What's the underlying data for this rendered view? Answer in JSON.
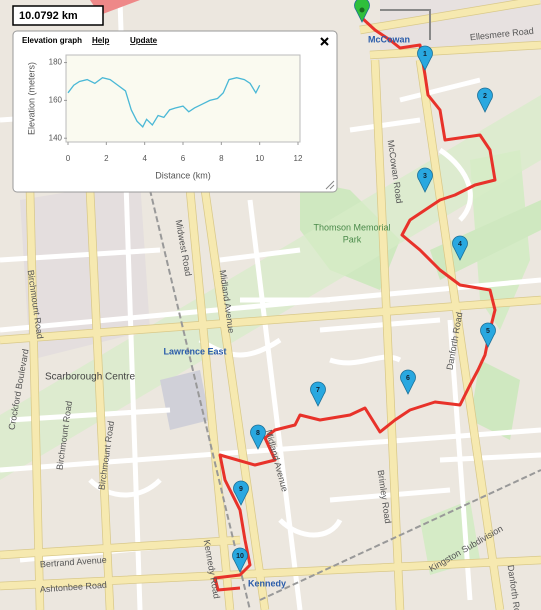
{
  "distance": "10.0792 km",
  "panel": {
    "title": "Elevation graph",
    "links": [
      "Help",
      "Update"
    ]
  },
  "chart_data": {
    "type": "line",
    "xlabel": "Distance (km)",
    "ylabel": "Elevation (meters)",
    "x": [
      0,
      0.3,
      0.6,
      1,
      1.4,
      1.8,
      2.2,
      2.6,
      3,
      3.3,
      3.6,
      3.9,
      4.1,
      4.4,
      4.7,
      5,
      5.3,
      5.6,
      6,
      6.3,
      6.6,
      7,
      7.4,
      7.8,
      8.1,
      8.4,
      8.8,
      9.2,
      9.5,
      9.8,
      10
    ],
    "values": [
      164,
      168,
      170,
      171,
      169,
      172,
      171,
      168,
      165,
      155,
      149,
      146,
      150,
      147,
      152,
      151,
      155,
      156,
      157,
      154,
      156,
      158,
      160,
      161,
      164,
      171,
      172,
      171,
      169,
      164,
      168
    ],
    "color": "#4ab8d6",
    "xlim": [
      0,
      12
    ],
    "xticks": [
      0,
      2,
      4,
      6,
      8,
      10,
      12
    ],
    "ylim": [
      138,
      184
    ],
    "yticks": [
      140,
      160,
      180
    ]
  },
  "map": {
    "labels": [
      "McCowan",
      "Ellesmere Road",
      "McCowan Road",
      "Thomson Memorial",
      "Park",
      "Midwest Road",
      "Midland Avenue",
      "Birchmount Road",
      "Lawrence East",
      "Scarborough Centre",
      "Crockford Boulevard",
      "Brimley Road",
      "Danforth Road",
      "Kennedy Road",
      "Kennedy",
      "Bertrand Avenue",
      "Ashtonbee Road",
      "Kingston Subdivision",
      "Midland Avenue",
      "Birchmount Road",
      "Birchmount Road",
      "Danforth Road"
    ],
    "markers": [
      "1",
      "2",
      "3",
      "4",
      "5",
      "6",
      "7",
      "8",
      "9",
      "10"
    ]
  }
}
